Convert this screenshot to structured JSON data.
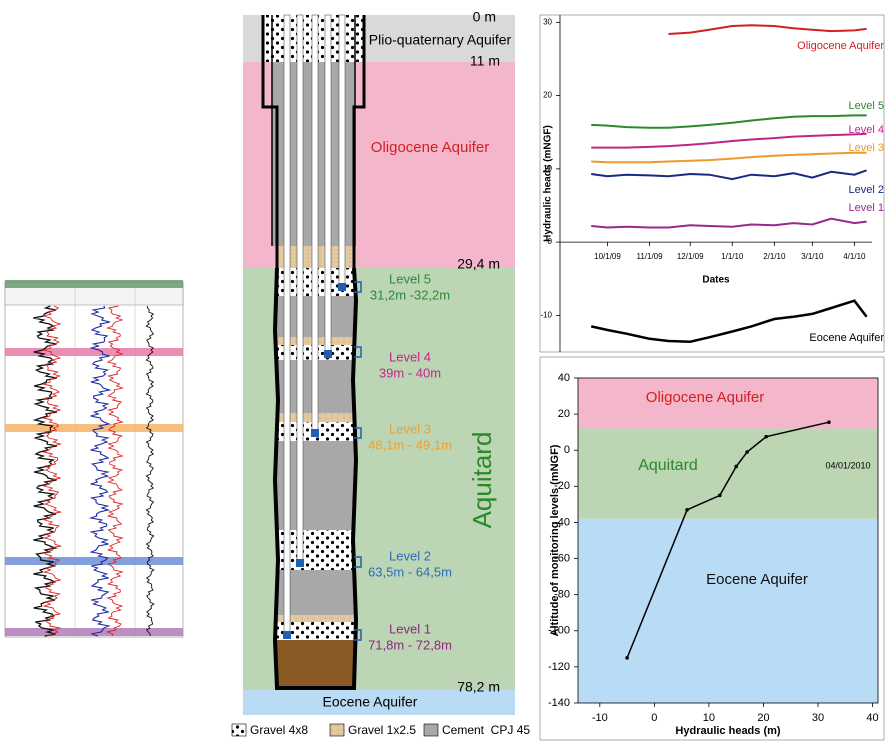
{
  "borehole": {
    "depth_labels": [
      "0 m",
      "11 m",
      "29,4 m",
      "78,2 m"
    ],
    "layers": [
      "Plio-quaternary Aquifer",
      "Oligocene Aquifer",
      "Aquitard",
      "Eocene Aquifer"
    ],
    "levels": [
      {
        "name": "Level 5",
        "depth": "31,2m -32,2m"
      },
      {
        "name": "Level 4",
        "depth": "39m - 40m"
      },
      {
        "name": "Level 3",
        "depth": "48,1m - 49,1m"
      },
      {
        "name": "Level 2",
        "depth": "63,5m - 64,5m"
      },
      {
        "name": "Level 1",
        "depth": "71,8m - 72,8m"
      }
    ],
    "legend": [
      "Gravel 4x8",
      "Gravel 1x2.5",
      "Cement  CPJ 45"
    ]
  },
  "chart_data": [
    {
      "type": "line",
      "y_label": "Hydraulic heads (mNGF)",
      "x_label": "Dates",
      "x": [
        "9/19/09",
        "10/1/09",
        "10/15/09",
        "11/1/09",
        "11/15/09",
        "12/1/09",
        "12/15/09",
        "1/1/10",
        "1/15/10",
        "2/1/10",
        "2/15/10",
        "3/1/10",
        "3/15/10",
        "4/1/10",
        "4/10/10"
      ],
      "xlim": [
        "8/27/09",
        "4/14/10"
      ],
      "xticks": [
        "10/1/09",
        "11/1/09",
        "12/1/09",
        "1/1/10",
        "2/1/10",
        "3/1/10",
        "4/1/10"
      ],
      "ylim": [
        -15,
        31
      ],
      "yticks": [
        30,
        20,
        10,
        0,
        -10
      ],
      "series": [
        {
          "name": "Oligocene Aquifer",
          "color": "#d42020",
          "values": [
            null,
            null,
            null,
            null,
            28.4,
            28.6,
            29.0,
            29.5,
            29.6,
            29.5,
            29.2,
            29.0,
            28.8,
            28.9,
            29.1
          ]
        },
        {
          "name": "Level 5",
          "color": "#2a8a2a",
          "values": [
            16.0,
            15.9,
            15.7,
            15.6,
            15.6,
            15.8,
            16.0,
            16.3,
            16.6,
            16.9,
            17.1,
            17.2,
            17.2,
            17.3,
            17.3
          ]
        },
        {
          "name": "Level 4",
          "color": "#c0268a",
          "values": [
            12.9,
            12.9,
            12.9,
            13.0,
            13.1,
            13.3,
            13.5,
            13.8,
            14.0,
            14.2,
            14.4,
            14.5,
            14.6,
            14.7,
            14.8
          ]
        },
        {
          "name": "Level 3",
          "color": "#ef9a2a",
          "values": [
            11.0,
            10.9,
            10.9,
            10.9,
            11.0,
            11.1,
            11.2,
            11.4,
            11.6,
            11.8,
            11.9,
            12.0,
            12.1,
            12.2,
            12.2
          ]
        },
        {
          "name": "Level 2",
          "color": "#1a2a80",
          "values": [
            9.3,
            9.0,
            9.2,
            9.1,
            9.0,
            9.3,
            9.2,
            8.6,
            9.2,
            9.0,
            9.4,
            8.8,
            9.6,
            9.2,
            9.8
          ]
        },
        {
          "name": "Level 1",
          "color": "#952a8a",
          "values": [
            2.2,
            2.0,
            2.1,
            2.0,
            2.0,
            2.3,
            2.2,
            2.1,
            2.4,
            2.3,
            2.6,
            2.4,
            3.2,
            2.6,
            2.8
          ]
        },
        {
          "name": "Eocene Aquifer",
          "color": "#000000",
          "values": [
            -11.5,
            -12.0,
            -12.5,
            -13.2,
            -13.5,
            -13.6,
            -13.0,
            -12.2,
            -11.5,
            -10.5,
            -10.2,
            -9.8,
            -9.0,
            -8.0,
            -10.2
          ]
        }
      ]
    },
    {
      "type": "line",
      "y_label": "Altitude of monitoring levels (mNGF)",
      "x_label": "Hydraulic heads (m)",
      "annotation": "04/01/2010",
      "x": [
        -5,
        6,
        12,
        15,
        17,
        20.5,
        32
      ],
      "xlim": [
        -14,
        41
      ],
      "xticks": [
        -10,
        0,
        10,
        20,
        30,
        40
      ],
      "ylim": [
        -140,
        40
      ],
      "yticks": [
        40,
        20,
        0,
        -20,
        -40,
        -60,
        -80,
        -100,
        -120,
        -140
      ],
      "bands": [
        {
          "name": "Oligocene Aquifer",
          "from": 12,
          "to": 40,
          "color": "#f4b6cb",
          "text_color": "#d42020"
        },
        {
          "name": "Aquitard",
          "from": -38,
          "to": 12,
          "color": "#bcd6b4",
          "text_color": "#2a8a2a"
        },
        {
          "name": "Eocene Aquifer",
          "from": -140,
          "to": -38,
          "color": "#b9dcf6",
          "text_color": "#111111"
        }
      ],
      "series": [
        {
          "color": "#000000",
          "values": [
            -115,
            -33,
            -25,
            -9,
            -1,
            7.5,
            15.5
          ]
        }
      ]
    }
  ]
}
